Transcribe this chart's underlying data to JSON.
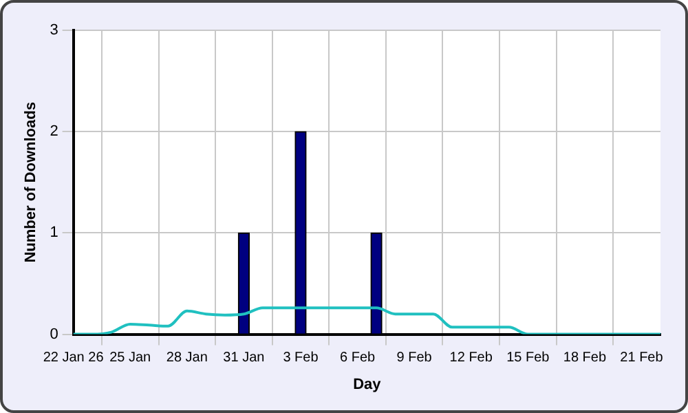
{
  "chart_data": {
    "type": "bar",
    "xlabel": "Day",
    "ylabel": "Number of Downloads",
    "categories": [
      "22 Jan 26",
      null,
      null,
      "25 Jan",
      null,
      null,
      "28 Jan",
      null,
      null,
      "31 Jan",
      null,
      null,
      "3 Feb",
      null,
      null,
      "6 Feb",
      null,
      null,
      "9 Feb",
      null,
      null,
      "12 Feb",
      null,
      null,
      "15 Feb",
      null,
      null,
      "18 Feb",
      null,
      null,
      "21 Feb",
      null
    ],
    "series": [
      {
        "color": "#000080",
        "values": [
          0,
          0,
          0,
          0,
          0,
          0,
          0,
          0,
          0,
          1,
          0,
          0,
          2,
          0,
          0,
          0,
          1,
          0,
          0,
          0,
          0,
          0,
          0,
          0,
          0,
          0,
          0,
          0,
          0,
          0,
          0,
          0
        ]
      },
      {
        "type": "line",
        "color": "#20c0c0",
        "values": [
          0,
          0,
          0.02,
          0.1,
          0.09,
          0.08,
          0.23,
          0.2,
          0.19,
          0.2,
          0.26,
          0.26,
          0.26,
          0.26,
          0.26,
          0.26,
          0.26,
          0.2,
          0.2,
          0.2,
          0.07,
          0.07,
          0.07,
          0.07,
          0,
          0,
          0,
          0,
          0,
          0,
          0,
          0
        ]
      }
    ],
    "ylim": [
      0,
      3
    ],
    "yticks": [
      0,
      1,
      2,
      3
    ],
    "grid": true,
    "legend": false,
    "marker": "none"
  }
}
